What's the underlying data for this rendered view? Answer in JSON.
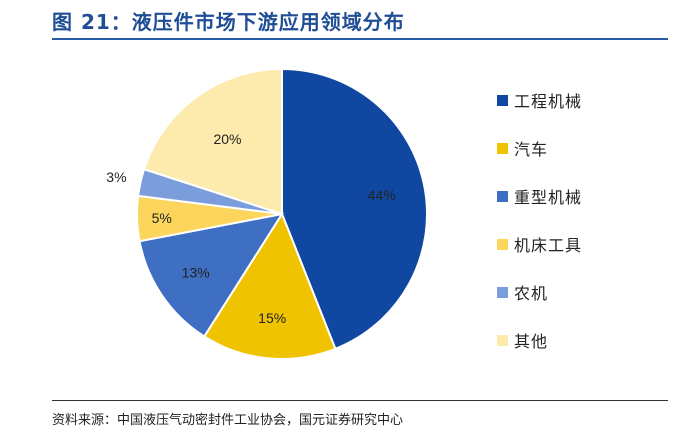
{
  "header": {
    "title": "图 21：液压件市场下游应用领域分布"
  },
  "footer": {
    "source": "资料来源：中国液压气动密封件工业协会，国元证券研究中心"
  },
  "chart_data": {
    "type": "pie",
    "title": "图 21：液压件市场下游应用领域分布",
    "start_angle_deg": 0,
    "direction": "clockwise",
    "legend_placement": "right",
    "slices": [
      {
        "name": "工程机械",
        "value": 44,
        "label": "44%",
        "color": "#0f47a1"
      },
      {
        "name": "汽车",
        "value": 15,
        "label": "15%",
        "color": "#f0c300"
      },
      {
        "name": "重型机械",
        "value": 13,
        "label": "13%",
        "color": "#3e6fc2"
      },
      {
        "name": "机床工具",
        "value": 5,
        "label": "5%",
        "color": "#fbd55c"
      },
      {
        "name": "农机",
        "value": 3,
        "label": "3%",
        "color": "#7b9ddb"
      },
      {
        "name": "其他",
        "value": 20,
        "label": "20%",
        "color": "#fdebad"
      }
    ]
  }
}
